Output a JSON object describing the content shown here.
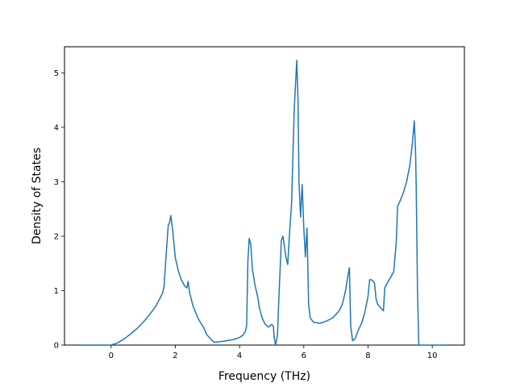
{
  "chart_data": {
    "type": "line",
    "title": "",
    "xlabel": "Frequency (THz)",
    "ylabel": "Density of States",
    "xlim": [
      -1.45,
      11.0
    ],
    "ylim": [
      0,
      5.48
    ],
    "xticks": [
      0,
      2,
      4,
      6,
      8,
      10
    ],
    "yticks": [
      0,
      1,
      2,
      3,
      4,
      5
    ],
    "grid": false,
    "line_color": "#1f77b4",
    "series": [
      {
        "x": [
          -1.0,
          0.0,
          0.2,
          0.4,
          0.6,
          0.8,
          1.0,
          1.2,
          1.4,
          1.6,
          1.65,
          1.72,
          1.78,
          1.82,
          1.86,
          1.92,
          2.0,
          2.1,
          2.2,
          2.3,
          2.36,
          2.4,
          2.45,
          2.55,
          2.7,
          2.9,
          2.98,
          3.2,
          3.5,
          3.8,
          4.0,
          4.1,
          4.18,
          4.22,
          4.26,
          4.3,
          4.35,
          4.4,
          4.48,
          4.56,
          4.62,
          4.7,
          4.8,
          4.9,
          5.0,
          5.05,
          5.08,
          5.12,
          5.18,
          5.22,
          5.3,
          5.35,
          5.4,
          5.45,
          5.5,
          5.55,
          5.62,
          5.7,
          5.78,
          5.82,
          5.85,
          5.9,
          5.95,
          6.0,
          6.05,
          6.1,
          6.12,
          6.15,
          6.2,
          6.3,
          6.5,
          6.7,
          6.9,
          7.1,
          7.2,
          7.3,
          7.38,
          7.42,
          7.46,
          7.52,
          7.6,
          7.7,
          7.8,
          7.9,
          8.0,
          8.05,
          8.1,
          8.15,
          8.2,
          8.25,
          8.3,
          8.4,
          8.48,
          8.52,
          8.6,
          8.7,
          8.8,
          8.88,
          8.92,
          9.0,
          9.1,
          9.2,
          9.3,
          9.38,
          9.44,
          9.48,
          9.5,
          9.54,
          9.58,
          9.6,
          9.8,
          10.5
        ],
        "y": [
          0.0,
          0.0,
          0.04,
          0.11,
          0.2,
          0.3,
          0.42,
          0.56,
          0.72,
          0.95,
          1.08,
          1.7,
          2.2,
          2.25,
          2.38,
          2.1,
          1.6,
          1.35,
          1.18,
          1.08,
          1.05,
          1.17,
          0.95,
          0.72,
          0.5,
          0.3,
          0.19,
          0.05,
          0.07,
          0.1,
          0.14,
          0.18,
          0.25,
          0.35,
          1.55,
          1.96,
          1.85,
          1.4,
          1.1,
          0.9,
          0.68,
          0.5,
          0.38,
          0.33,
          0.38,
          0.35,
          0.14,
          0.0,
          0.17,
          0.8,
          1.92,
          2.0,
          1.8,
          1.6,
          1.48,
          2.0,
          2.6,
          4.3,
          5.23,
          4.5,
          3.0,
          2.35,
          2.95,
          2.15,
          1.62,
          2.15,
          1.6,
          0.75,
          0.5,
          0.42,
          0.4,
          0.44,
          0.5,
          0.63,
          0.75,
          1.0,
          1.3,
          1.42,
          0.35,
          0.08,
          0.12,
          0.28,
          0.4,
          0.6,
          0.9,
          1.2,
          1.2,
          1.18,
          1.14,
          0.85,
          0.75,
          0.68,
          0.63,
          1.05,
          1.14,
          1.24,
          1.35,
          1.9,
          2.55,
          2.65,
          2.8,
          3.0,
          3.3,
          3.7,
          4.12,
          3.55,
          2.9,
          1.0,
          0.0,
          0.0,
          0.0,
          0.0
        ]
      }
    ]
  }
}
